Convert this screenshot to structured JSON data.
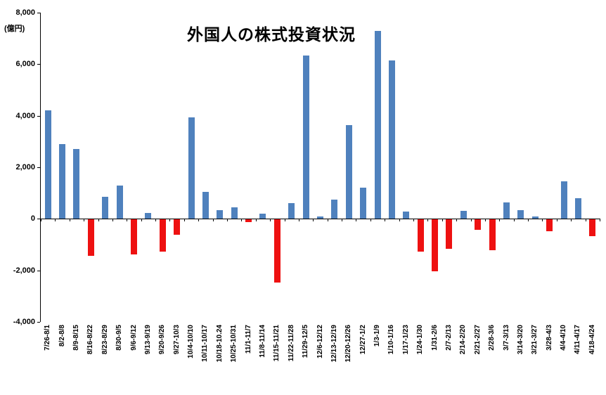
{
  "chart_data": {
    "type": "bar",
    "title": "外国人の株式投資状況",
    "unit_label": "(億円)",
    "xlabel": "",
    "ylabel": "(億円)",
    "ylim": [
      -4000,
      8000
    ],
    "y_ticks": [
      8000,
      6000,
      4000,
      2000,
      0,
      -2000,
      -4000
    ],
    "grid": false,
    "legend": "none",
    "colors": {
      "positive": "#4f81bd",
      "negative": "#ee1111"
    },
    "categories": [
      "7/26-8/1",
      "8/2-8/8",
      "8/9-8/15",
      "8/16-8/22",
      "8/23-8/29",
      "8/30-9/5",
      "9/6-9/12",
      "9/13-9/19",
      "9/20-9/26",
      "9/27-10/3",
      "10/4-10/10",
      "10/11-10/17",
      "10/18-10.24",
      "10/25-10/31",
      "11/1-11/7",
      "11/8-11/14",
      "11/15-11/21",
      "11/22-11/28",
      "11/29-12/5",
      "12/6-12/12",
      "12/13-12/19",
      "12/20-12/26",
      "12/27-1/2",
      "1/3-1/9",
      "1/10-1/16",
      "1/17-1/23",
      "1/24-1/30",
      "1/31-2/6",
      "2/7-2/13",
      "2/14-2/20",
      "2/21-2/27",
      "2/28-3/6",
      "3/7-3/13",
      "3/14-3/20",
      "3/21-3/27",
      "3/28-4/3",
      "4/4-4/10",
      "4/11-4/17",
      "4/18-4/24"
    ],
    "values": [
      4200,
      2900,
      2700,
      -1400,
      850,
      1300,
      -1350,
      230,
      -1250,
      -600,
      3950,
      1050,
      350,
      450,
      -100,
      200,
      -2450,
      600,
      6350,
      80,
      750,
      3650,
      1200,
      7300,
      6150,
      280,
      -1250,
      -2000,
      -1150,
      300,
      -400,
      -1200,
      650,
      350,
      100,
      -450,
      1450,
      800,
      -650
    ]
  }
}
